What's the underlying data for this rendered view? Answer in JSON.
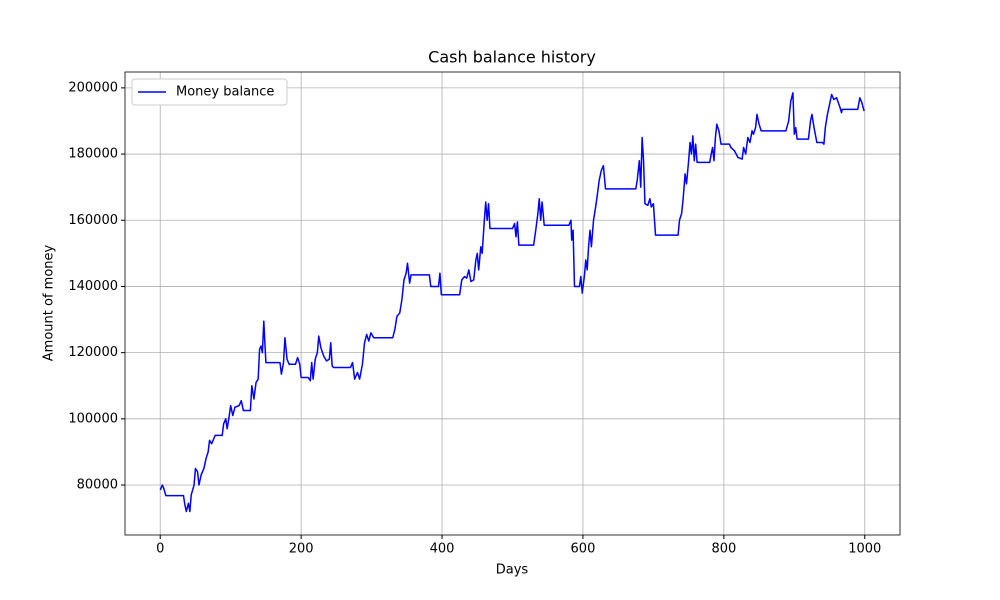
{
  "chart_data": {
    "type": "line",
    "title": "Cash balance history",
    "x_label": "Days",
    "y_label": "Amount of money",
    "x": [
      0,
      3,
      5,
      8,
      33,
      35,
      37,
      40,
      42,
      44,
      48,
      50,
      53,
      55,
      58,
      62,
      65,
      68,
      70,
      73,
      78,
      88,
      90,
      93,
      95,
      98,
      100,
      103,
      106,
      112,
      115,
      118,
      128,
      130,
      133,
      136,
      139,
      141,
      143,
      145,
      147,
      149,
      150,
      170,
      172,
      175,
      177,
      180,
      183,
      192,
      195,
      198,
      200,
      210,
      213,
      215,
      217,
      220,
      223,
      225,
      228,
      232,
      236,
      240,
      242,
      244,
      246,
      270,
      273,
      276,
      280,
      283,
      287,
      290,
      293,
      296,
      299,
      303,
      330,
      333,
      336,
      340,
      343,
      346,
      349,
      351,
      354,
      356,
      382,
      384,
      395,
      397,
      399,
      425,
      428,
      432,
      435,
      438,
      441,
      445,
      448,
      450,
      452,
      455,
      457,
      460,
      462,
      464,
      466,
      468,
      500,
      503,
      505,
      507,
      509,
      530,
      533,
      536,
      538,
      540,
      542,
      545,
      580,
      583,
      584,
      586,
      588,
      595,
      597,
      599,
      602,
      604,
      606,
      608,
      610,
      612,
      615,
      618,
      620,
      623,
      626,
      629,
      632,
      675,
      677,
      680,
      682,
      684,
      686,
      688,
      692,
      695,
      697,
      700,
      703,
      735,
      737,
      740,
      742,
      745,
      747,
      750,
      752,
      754,
      756,
      758,
      760,
      762,
      780,
      782,
      784,
      786,
      788,
      790,
      793,
      796,
      808,
      810,
      815,
      820,
      826,
      828,
      831,
      834,
      837,
      840,
      842,
      845,
      847,
      850,
      853,
      888,
      892,
      895,
      898,
      900,
      902,
      904,
      920,
      923,
      925,
      928,
      932,
      940,
      942,
      944,
      947,
      950,
      953,
      956,
      960,
      965,
      967,
      968,
      990,
      993,
      996,
      999
    ],
    "series": [
      {
        "name": "Money balance",
        "color": "#0000ff",
        "values": [
          78500,
          80000,
          79000,
          76800,
          76800,
          74000,
          72000,
          74500,
          72000,
          77000,
          80000,
          85000,
          84000,
          80000,
          83000,
          85000,
          88000,
          90000,
          93500,
          92500,
          95000,
          95000,
          98500,
          100000,
          97000,
          101000,
          104000,
          101000,
          103500,
          104000,
          105500,
          102500,
          102500,
          110000,
          106000,
          111000,
          112000,
          121000,
          122000,
          120000,
          129500,
          121000,
          117000,
          117000,
          113500,
          117000,
          124500,
          118000,
          116500,
          116500,
          118500,
          116500,
          112500,
          112500,
          111500,
          117000,
          112000,
          118000,
          120000,
          125000,
          121500,
          119000,
          117500,
          118000,
          123000,
          116000,
          115500,
          115500,
          117000,
          112000,
          114000,
          112000,
          116500,
          123000,
          125500,
          123500,
          126000,
          124500,
          124500,
          127000,
          131000,
          132000,
          136000,
          142000,
          144000,
          147000,
          141000,
          143500,
          143500,
          140000,
          140000,
          144000,
          137500,
          137500,
          142000,
          143000,
          142500,
          145000,
          141500,
          142000,
          148000,
          150000,
          145000,
          152000,
          150000,
          160000,
          165500,
          160000,
          165000,
          157500,
          157500,
          159000,
          155000,
          159500,
          152500,
          152500,
          157000,
          162000,
          166500,
          160000,
          165500,
          158500,
          158500,
          160000,
          154000,
          157000,
          140000,
          140000,
          143000,
          138000,
          143000,
          148000,
          145000,
          152000,
          157000,
          152000,
          160000,
          164000,
          167000,
          172000,
          175000,
          176500,
          169500,
          169500,
          172000,
          178000,
          170000,
          185000,
          178000,
          165000,
          164500,
          166500,
          164000,
          165000,
          155500,
          155500,
          160000,
          162000,
          166000,
          174000,
          171000,
          178000,
          183500,
          180000,
          185500,
          178000,
          183000,
          177500,
          177500,
          180000,
          182000,
          178000,
          185000,
          189000,
          187000,
          183000,
          183000,
          182000,
          181000,
          179000,
          178500,
          182000,
          180000,
          185000,
          183500,
          187000,
          186000,
          188000,
          192000,
          189000,
          187000,
          187000,
          190000,
          196000,
          198500,
          186000,
          188000,
          184500,
          184500,
          190000,
          192000,
          188000,
          183500,
          183500,
          183000,
          188000,
          192000,
          195000,
          198000,
          196500,
          197000,
          194000,
          192500,
          193500,
          193500,
          197000,
          195500,
          193000
        ]
      }
    ],
    "xlim": [
      -50,
      1050
    ],
    "ylim": [
      64900,
      204800
    ],
    "xticks": [
      0,
      200,
      400,
      600,
      800,
      1000
    ],
    "yticks": [
      80000,
      100000,
      120000,
      140000,
      160000,
      180000,
      200000
    ],
    "grid": true,
    "legend": "upper-left"
  }
}
